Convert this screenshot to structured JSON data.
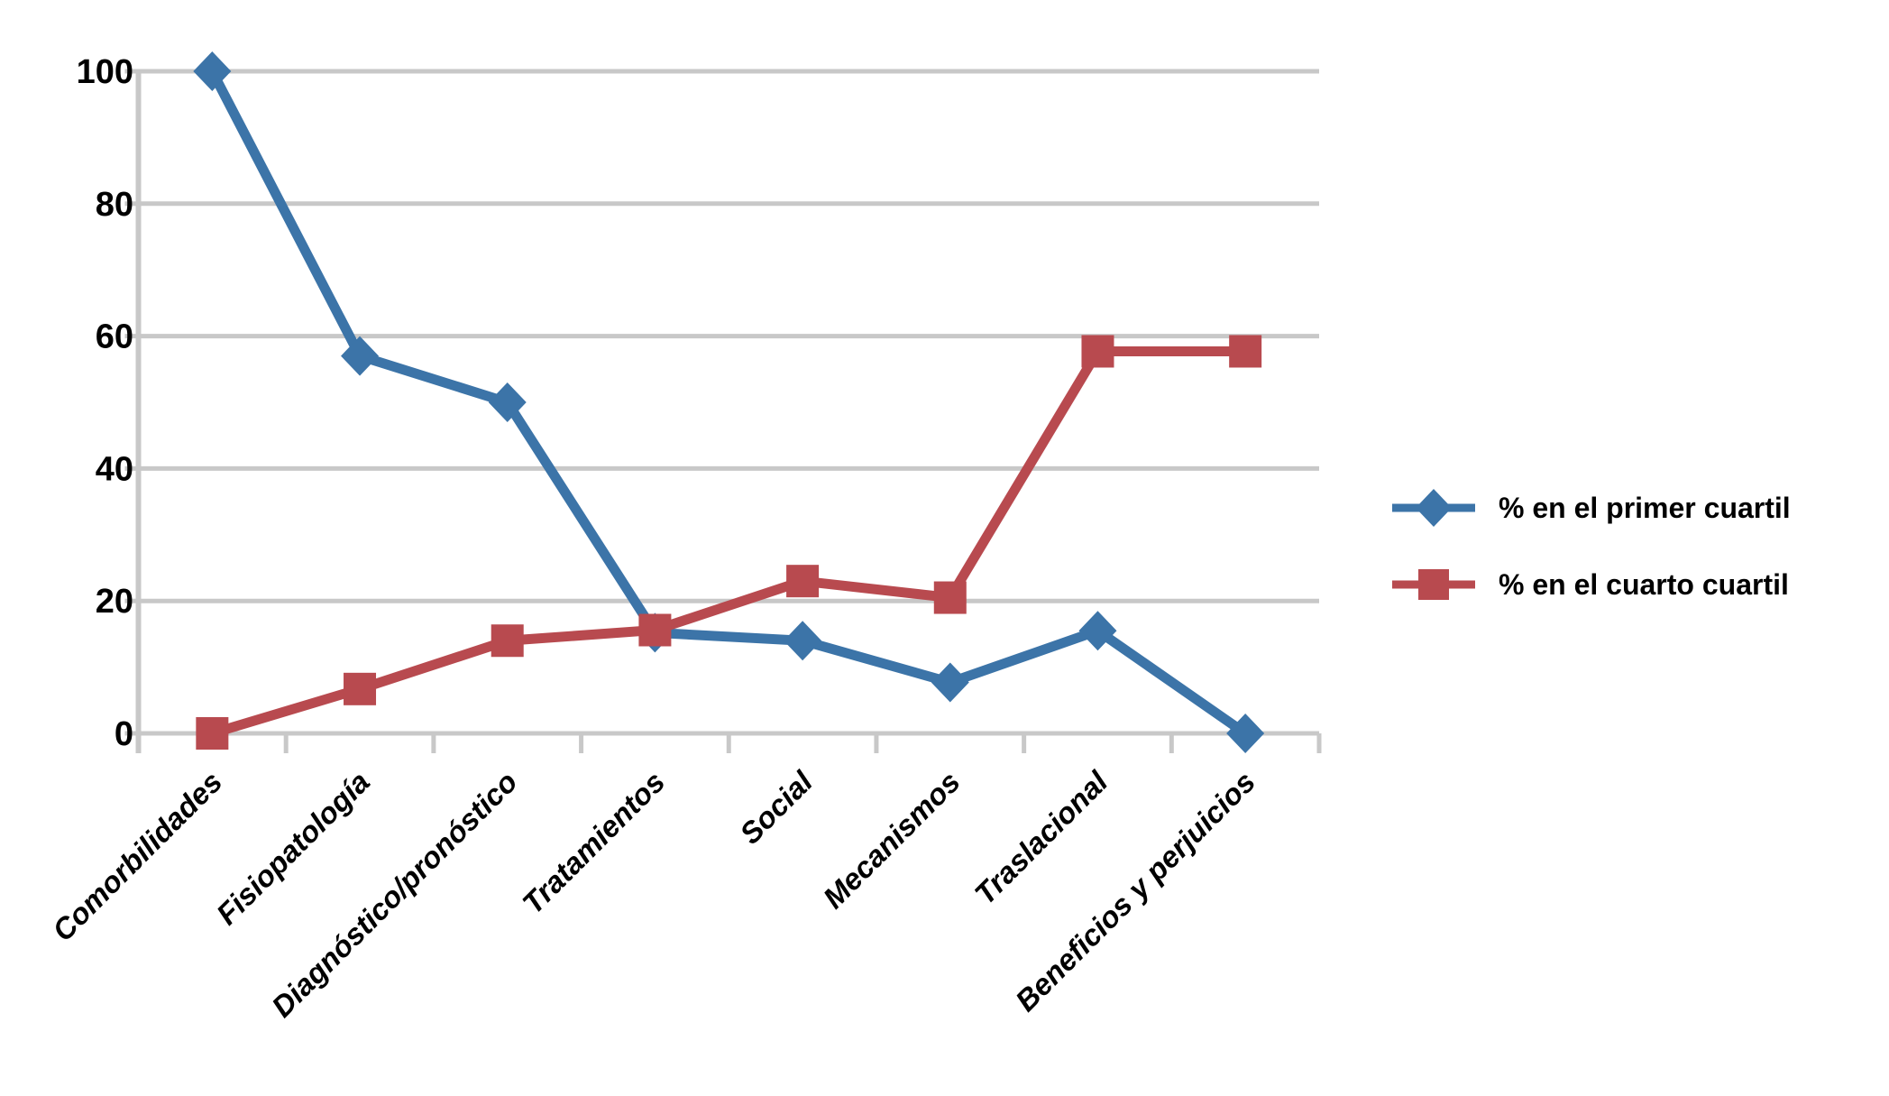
{
  "chart_data": {
    "type": "line",
    "title": "",
    "xlabel": "",
    "ylabel": "",
    "categories": [
      "Comorbilidades",
      "Fisiopatología",
      "Diagnóstico/pronóstico",
      "Tratamientos",
      "Social",
      "Mecanismos",
      "Traslacional",
      "Beneficios y perjuicios"
    ],
    "series": [
      {
        "name": "% en el primer cuartil",
        "marker": "diamond",
        "color": "#3C74A8",
        "values": [
          100,
          57,
          50,
          15.2,
          14,
          7.7,
          15.5,
          0
        ]
      },
      {
        "name": "% en el cuarto cuartil",
        "marker": "square",
        "color": "#B84A4F",
        "values": [
          0,
          6.7,
          14,
          15.6,
          23,
          20.5,
          57.7,
          57.7
        ]
      }
    ],
    "ylim": [
      0,
      100
    ],
    "yticks": [
      0,
      20,
      40,
      60,
      80,
      100
    ],
    "grid": true,
    "grid_color": "#C8C8C8",
    "axis_color": "#C8C8C8",
    "background": "#FFFFFF",
    "legend_position": "right-middle"
  }
}
